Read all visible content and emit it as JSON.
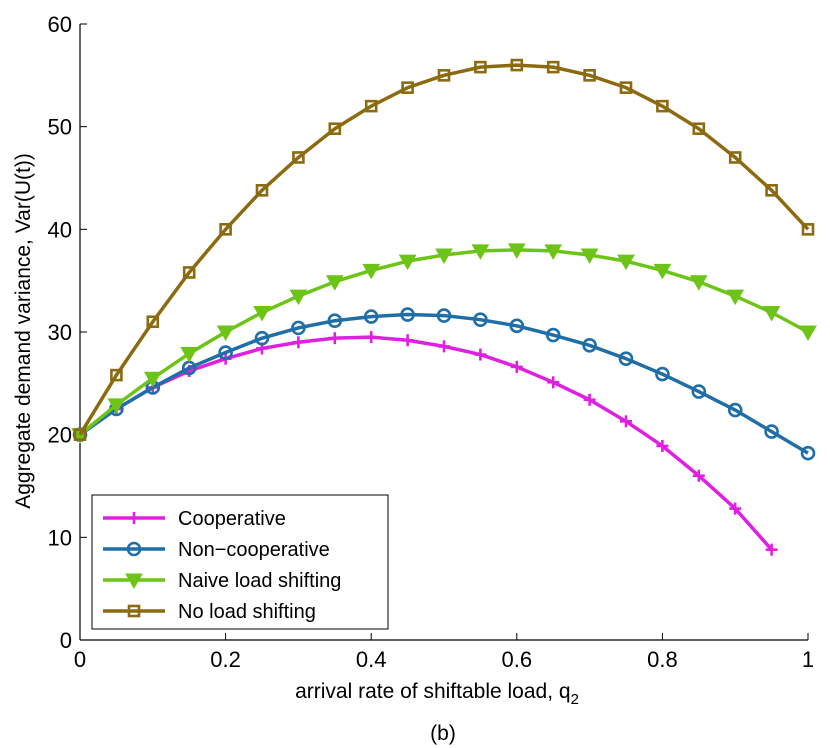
{
  "chart_data": {
    "type": "line",
    "title": "",
    "xlabel": "arrival rate of shiftable load, q",
    "xlabel_subscript": "2",
    "ylabel": "Aggregate demand variance,  Var(U(t))",
    "caption": "(b)",
    "xlim": [
      0,
      1
    ],
    "ylim": [
      0,
      60
    ],
    "xticks": [
      0,
      0.2,
      0.4,
      0.6,
      0.8,
      1
    ],
    "xtick_labels": [
      "0",
      "0.2",
      "0.4",
      "0.6",
      "0.8",
      "1"
    ],
    "yticks": [
      0,
      10,
      20,
      30,
      40,
      50,
      60
    ],
    "ytick_labels": [
      "0",
      "10",
      "20",
      "30",
      "40",
      "50",
      "60"
    ],
    "grid": false,
    "legend_position": "bottom-left",
    "series": [
      {
        "name": "Cooperative",
        "color": "#e020e0",
        "marker": "plus",
        "x": [
          0,
          0.05,
          0.1,
          0.15,
          0.2,
          0.25,
          0.3,
          0.35,
          0.4,
          0.45,
          0.5,
          0.55,
          0.6,
          0.65,
          0.7,
          0.75,
          0.8,
          0.85,
          0.9,
          0.95
        ],
        "values": [
          20,
          22.5,
          24.6,
          26.2,
          27.4,
          28.4,
          29.0,
          29.4,
          29.5,
          29.2,
          28.6,
          27.8,
          26.6,
          25.1,
          23.4,
          21.3,
          18.9,
          16.0,
          12.8,
          8.8
        ]
      },
      {
        "name": "Non−cooperative",
        "color": "#1f6ea8",
        "marker": "circle",
        "x": [
          0,
          0.05,
          0.1,
          0.15,
          0.2,
          0.25,
          0.3,
          0.35,
          0.4,
          0.45,
          0.5,
          0.55,
          0.6,
          0.65,
          0.7,
          0.75,
          0.8,
          0.85,
          0.9,
          0.95,
          1.0
        ],
        "values": [
          20,
          22.5,
          24.6,
          26.5,
          28.0,
          29.4,
          30.4,
          31.1,
          31.5,
          31.7,
          31.6,
          31.2,
          30.6,
          29.7,
          28.7,
          27.4,
          25.9,
          24.2,
          22.4,
          20.3,
          18.2
        ]
      },
      {
        "name": "Naive load shifting",
        "color": "#6cc417",
        "marker": "triangle-down",
        "x": [
          0,
          0.05,
          0.1,
          0.15,
          0.2,
          0.25,
          0.3,
          0.35,
          0.4,
          0.45,
          0.5,
          0.55,
          0.6,
          0.65,
          0.7,
          0.75,
          0.8,
          0.85,
          0.9,
          0.95,
          1.0
        ],
        "values": [
          20,
          22.9,
          25.5,
          27.9,
          30.0,
          31.9,
          33.5,
          34.9,
          36.0,
          36.9,
          37.5,
          37.9,
          38.0,
          37.9,
          37.5,
          36.9,
          36.0,
          34.9,
          33.5,
          31.9,
          30.0
        ]
      },
      {
        "name": "No load shifting",
        "color": "#8b6a10",
        "marker": "square",
        "x": [
          0,
          0.05,
          0.1,
          0.15,
          0.2,
          0.25,
          0.3,
          0.35,
          0.4,
          0.45,
          0.5,
          0.55,
          0.6,
          0.65,
          0.7,
          0.75,
          0.8,
          0.85,
          0.9,
          0.95,
          1.0
        ],
        "values": [
          20,
          25.8,
          31.0,
          35.8,
          40.0,
          43.8,
          47.0,
          49.8,
          52.0,
          53.8,
          55.0,
          55.8,
          56.0,
          55.8,
          55.0,
          53.8,
          52.0,
          49.8,
          47.0,
          43.8,
          40.0
        ]
      }
    ]
  }
}
